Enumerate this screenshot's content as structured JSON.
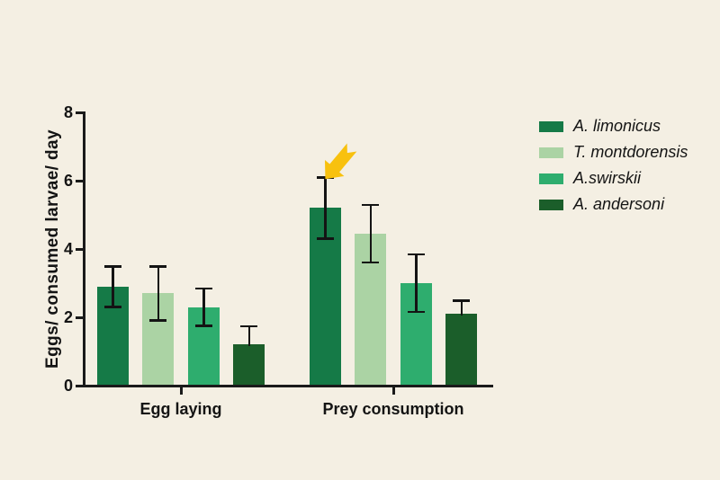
{
  "figure": {
    "background": "#F4EFE3",
    "axis_color": "#1A1A1A",
    "text_color": "#141414",
    "error_bar_color": "#141414"
  },
  "chart_data": {
    "type": "bar",
    "title": "",
    "xlabel": "",
    "ylabel": "Eggs/ consumed larvae/ day",
    "categories": [
      "Egg laying",
      "Prey consumption"
    ],
    "yticks": [
      0,
      2,
      4,
      6,
      8
    ],
    "ylim": [
      0,
      8
    ],
    "grid": false,
    "legend_position": "right",
    "series": [
      {
        "name": "A. limonicus",
        "color": "#157A47",
        "values": [
          2.9,
          5.2
        ],
        "err_up": [
          0.6,
          0.9
        ],
        "err_down": [
          0.6,
          0.9
        ]
      },
      {
        "name": "T. montdorensis",
        "color": "#ABD3A4",
        "values": [
          2.7,
          4.45
        ],
        "err_up": [
          0.8,
          0.85
        ],
        "err_down": [
          0.8,
          0.85
        ]
      },
      {
        "name": "A.swirskii",
        "color": "#2EAD6E",
        "values": [
          2.3,
          3.0
        ],
        "err_up": [
          0.55,
          0.85
        ],
        "err_down": [
          0.55,
          0.85
        ]
      },
      {
        "name": "A. andersoni",
        "color": "#1B5E2A",
        "values": [
          1.2,
          2.1
        ],
        "err_up": [
          0.55,
          0.4
        ],
        "err_down": [
          0,
          0
        ]
      }
    ],
    "annotation": {
      "type": "arrow",
      "color": "#F8C10E",
      "target_series": "A. limonicus",
      "target_category": "Prey consumption"
    }
  }
}
